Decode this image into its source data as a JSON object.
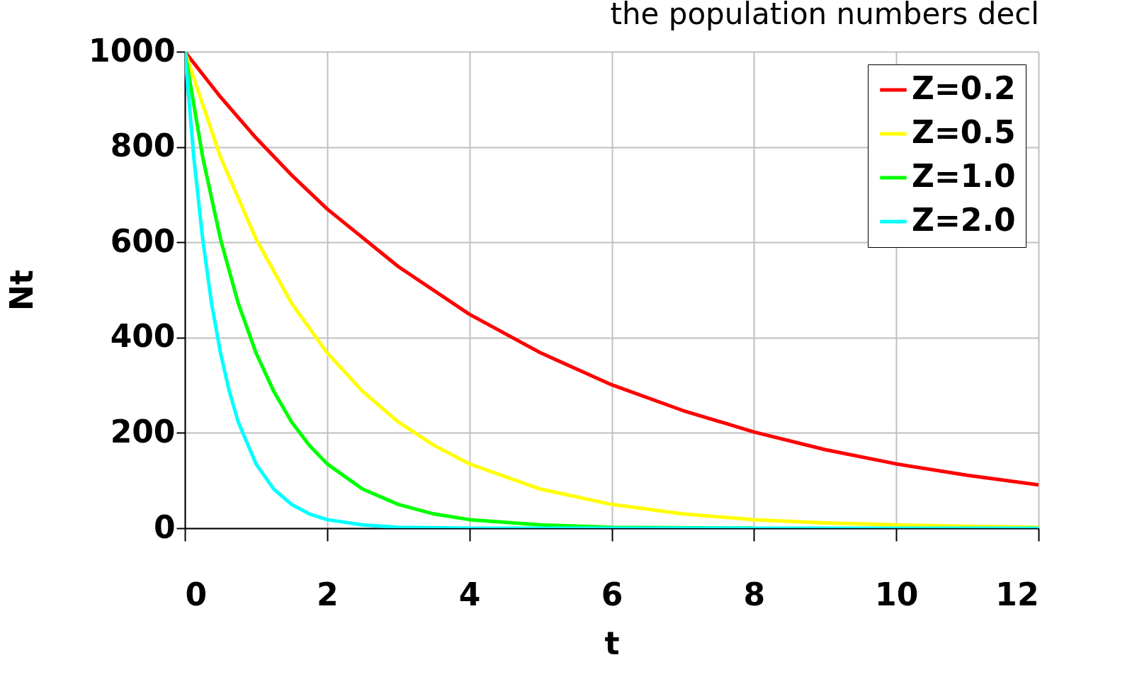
{
  "chart_data": {
    "type": "line",
    "title": "the population numbers decl",
    "xlabel": "t",
    "ylabel": "Nt",
    "xlim": [
      0,
      12
    ],
    "xticks": [
      0,
      2,
      4,
      6,
      8,
      10,
      12
    ],
    "ylim": [
      0,
      1000
    ],
    "yticks": [
      0,
      200,
      400,
      600,
      800,
      1000
    ],
    "grid": true,
    "legend": "top right",
    "marker": "none",
    "line_style": "solid",
    "series": [
      {
        "name": "Z=0.2",
        "color": "#ff0000",
        "x": [
          0,
          0.5,
          1,
          1.5,
          2,
          3,
          4,
          5,
          6,
          7,
          8,
          9,
          10,
          11,
          12
        ],
        "values": [
          1000,
          905,
          819,
          741,
          670,
          549,
          449,
          368,
          301,
          247,
          202,
          165,
          135,
          111,
          91
        ]
      },
      {
        "name": "Z=0.5",
        "color": "#ffff00",
        "x": [
          0,
          0.5,
          1,
          1.5,
          2,
          2.5,
          3,
          3.5,
          4,
          5,
          6,
          7,
          8,
          9,
          10,
          11,
          12
        ],
        "values": [
          1000,
          779,
          607,
          472,
          368,
          287,
          223,
          174,
          135,
          82,
          50,
          30,
          18,
          11,
          7,
          4,
          2
        ]
      },
      {
        "name": "Z=1.0",
        "color": "#00ff00",
        "x": [
          0,
          0.25,
          0.5,
          0.75,
          1,
          1.25,
          1.5,
          1.75,
          2,
          2.5,
          3,
          3.5,
          4,
          5,
          6,
          8
        ],
        "values": [
          1000,
          779,
          607,
          472,
          368,
          287,
          223,
          174,
          135,
          82,
          50,
          30,
          18,
          7,
          2,
          0
        ]
      },
      {
        "name": "Z=2.0",
        "color": "#00ffff",
        "x": [
          0,
          0.125,
          0.25,
          0.375,
          0.5,
          0.625,
          0.75,
          1,
          1.25,
          1.5,
          1.75,
          2,
          2.5,
          3,
          4,
          6,
          8,
          12
        ],
        "values": [
          1000,
          779,
          607,
          472,
          368,
          287,
          223,
          135,
          82,
          50,
          30,
          18,
          7,
          2,
          0,
          0,
          0,
          0
        ]
      }
    ]
  }
}
